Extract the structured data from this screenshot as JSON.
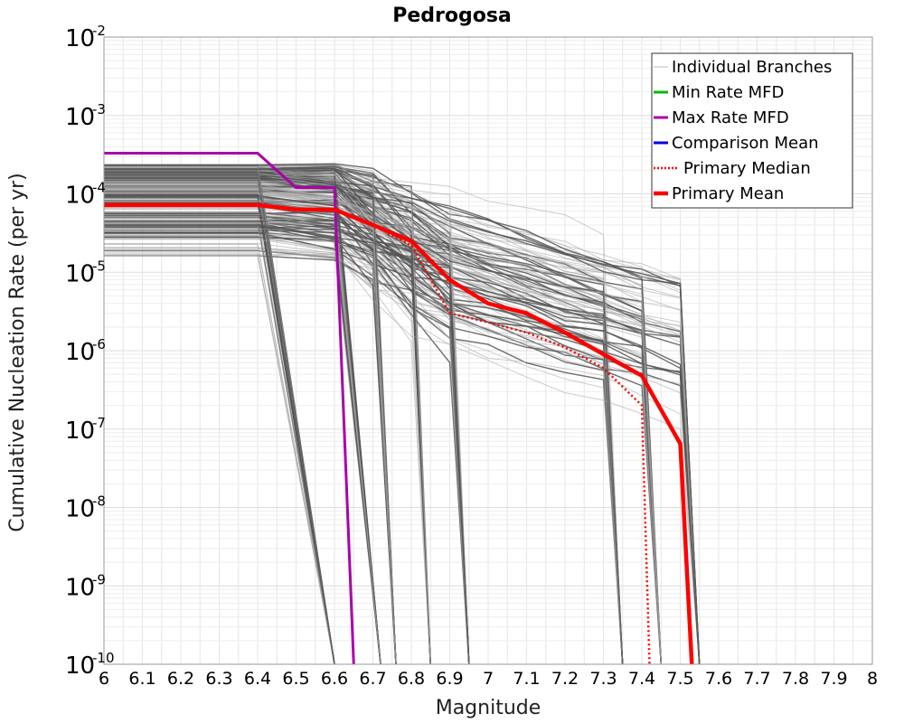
{
  "chart_data": {
    "type": "line",
    "title": "Pedrogosa",
    "xlabel": "Magnitude",
    "ylabel": "Cumulative Nucleation Rate (per yr)",
    "xlim": [
      6,
      8
    ],
    "ylim": [
      1e-10,
      0.01
    ],
    "yscale": "log",
    "grid": true,
    "legend_position": "top-right",
    "x_ticks": [
      "6",
      "6.1",
      "6.2",
      "6.3",
      "6.4",
      "6.5",
      "6.6",
      "6.7",
      "6.8",
      "6.9",
      "7",
      "7.1",
      "7.2",
      "7.3",
      "7.4",
      "7.5",
      "7.6",
      "7.7",
      "7.8",
      "7.9",
      "8"
    ],
    "y_ticks": [
      {
        "base": "10",
        "exp": "-2"
      },
      {
        "base": "10",
        "exp": "-3"
      },
      {
        "base": "10",
        "exp": "-4"
      },
      {
        "base": "10",
        "exp": "-5"
      },
      {
        "base": "10",
        "exp": "-6"
      },
      {
        "base": "10",
        "exp": "-7"
      },
      {
        "base": "10",
        "exp": "-8"
      },
      {
        "base": "10",
        "exp": "-9"
      },
      {
        "base": "10",
        "exp": "-10"
      }
    ],
    "legend": [
      {
        "label": "Individual Branches",
        "color": "#bbbbbb",
        "style": "solid"
      },
      {
        "label": "Min Rate MFD",
        "color": "#00bb00",
        "style": "solid"
      },
      {
        "label": "Max Rate MFD",
        "color": "#aa00aa",
        "style": "solid"
      },
      {
        "label": "Comparison Mean",
        "color": "#0000dd",
        "style": "solid"
      },
      {
        "label": "Primary Median",
        "color": "#ff0000",
        "style": "dotted"
      },
      {
        "label": "Primary Mean",
        "color": "#ff0000",
        "style": "solid"
      }
    ],
    "series": [
      {
        "color": "#aa00aa",
        "x": [
          6.0,
          6.4,
          6.5,
          6.6,
          6.65
        ],
        "y": [
          0.00033,
          0.00033,
          0.00012,
          0.00012,
          1e-10
        ]
      },
      {
        "color": "#ff0000",
        "style": "solid",
        "x": [
          6.0,
          6.4,
          6.5,
          6.6,
          6.7,
          6.8,
          6.9,
          7.0,
          7.1,
          7.2,
          7.3,
          7.4,
          7.5,
          7.53
        ],
        "y": [
          7.2e-05,
          7.2e-05,
          6.3e-05,
          6.3e-05,
          4e-05,
          2.5e-05,
          8e-06,
          4e-06,
          3e-06,
          1.7e-06,
          9e-07,
          4.8e-07,
          6.5e-08,
          1e-10
        ]
      },
      {
        "color": "#ff0000",
        "style": "dotted",
        "x": [
          6.0,
          6.4,
          6.5,
          6.6,
          6.7,
          6.8,
          6.9,
          7.0,
          7.1,
          7.2,
          7.3,
          7.4,
          7.42
        ],
        "y": [
          7.2e-05,
          7.2e-05,
          6.3e-05,
          6.3e-05,
          4e-05,
          2.2e-05,
          3e-06,
          2.3e-06,
          1.7e-06,
          1.1e-06,
          6e-07,
          2e-07,
          1e-10
        ]
      }
    ]
  }
}
